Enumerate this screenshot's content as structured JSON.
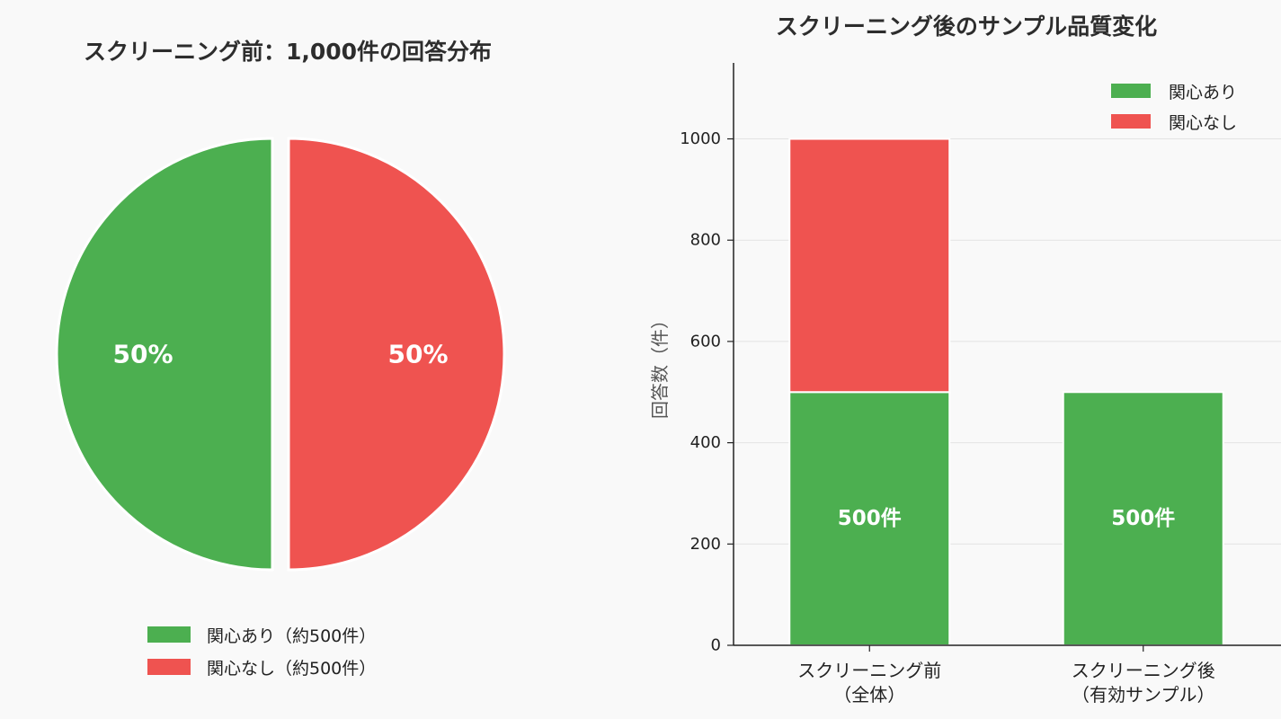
{
  "colors": {
    "interested": "#4caf50",
    "not_interested": "#ef5350",
    "background": "#f9f9f9"
  },
  "chart_data": [
    {
      "type": "pie",
      "title": "スクリーニング前：1,000件の回答分布",
      "slices": [
        {
          "label": "関心あり（約500件）",
          "value": 50,
          "display": "50%",
          "color": "#4caf50"
        },
        {
          "label": "関心なし（約500件）",
          "value": 50,
          "display": "50%",
          "color": "#ef5350"
        }
      ],
      "legend_position": "bottom"
    },
    {
      "type": "bar",
      "stacked": true,
      "title": "スクリーニング後のサンプル品質変化",
      "categories": [
        [
          "スクリーニング前",
          "（全体）"
        ],
        [
          "スクリーニング後",
          "（有効サンプル）"
        ]
      ],
      "series": [
        {
          "name": "関心あり",
          "values": [
            500,
            500
          ],
          "labels": [
            "500件",
            "500件"
          ],
          "color": "#4caf50"
        },
        {
          "name": "関心なし",
          "values": [
            500,
            0
          ],
          "color": "#ef5350"
        }
      ],
      "ylabel": "回答数（件）",
      "ylim": [
        0,
        1150
      ],
      "yticks": [
        0,
        200,
        400,
        600,
        800,
        1000
      ],
      "grid": "y",
      "legend_position": "top-right"
    }
  ]
}
